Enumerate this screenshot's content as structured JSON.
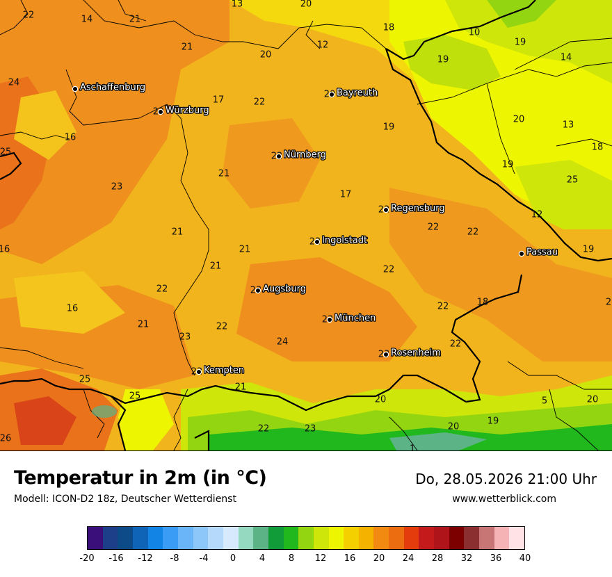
{
  "map": {
    "cities": [
      {
        "name": "Aschaffenburg",
        "value": ""
      },
      {
        "name": "Würzburg",
        "value": "22"
      },
      {
        "name": "Bayreuth",
        "value": "20"
      },
      {
        "name": "Nürnberg",
        "value": "22"
      },
      {
        "name": "Regensburg",
        "value": "22"
      },
      {
        "name": "Ingolstadt",
        "value": "22"
      },
      {
        "name": "Passau",
        "value": ""
      },
      {
        "name": "Augsburg",
        "value": "23"
      },
      {
        "name": "München",
        "value": "23"
      },
      {
        "name": "Rosenheim",
        "value": "23"
      },
      {
        "name": "Kempten",
        "value": "22"
      }
    ],
    "temperature_labels": [
      "22",
      "14",
      "21",
      "13",
      "20",
      "18",
      "10",
      "19",
      "12",
      "21",
      "20",
      "19",
      "14",
      "24",
      "17",
      "22",
      "16",
      "19",
      "20",
      "13",
      "18",
      "25",
      "23",
      "21",
      "19",
      "25",
      "21",
      "17",
      "12",
      "22",
      "22",
      "16",
      "21",
      "22",
      "19",
      "21",
      "22",
      "18",
      "16",
      "22",
      "21",
      "22",
      "23",
      "22",
      "24",
      "25",
      "21",
      "25",
      "20",
      "5",
      "20",
      "22",
      "23",
      "20",
      "19",
      "26",
      "1",
      "2"
    ]
  },
  "footer": {
    "title": "Temperatur in 2m (in °C)",
    "model": "Modell: ICON-D2 18z, Deutscher Wetterdienst",
    "datetime": "Do, 28.05.2026 21:00 Uhr",
    "website": "www.wetterblick.com"
  },
  "scale": {
    "colors": [
      "#3a0f7a",
      "#1d3f8a",
      "#0d4a88",
      "#0f64b8",
      "#1184e6",
      "#3a9cf5",
      "#69b5f7",
      "#8dc6f8",
      "#b4d9fb",
      "#d7e9fc",
      "#95d9c0",
      "#5cb486",
      "#119c39",
      "#21b81d",
      "#93d510",
      "#cfe60a",
      "#eef500",
      "#f4d000",
      "#f5b300",
      "#f28a12",
      "#ec6d10",
      "#e43c0c",
      "#c51a1c",
      "#ae1419",
      "#7d0000",
      "#8b2f31",
      "#c87576",
      "#f6b3b6",
      "#ffe2e5"
    ],
    "tick_labels": [
      "-20",
      "-16",
      "-12",
      "-8",
      "-4",
      "0",
      "4",
      "8",
      "12",
      "16",
      "20",
      "24",
      "28",
      "32",
      "36",
      "40"
    ]
  }
}
